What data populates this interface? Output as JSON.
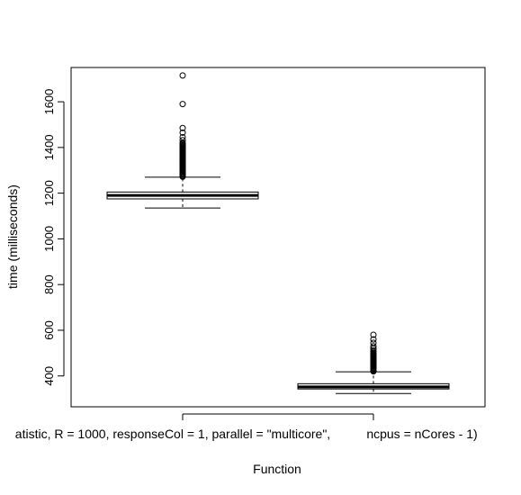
{
  "chart_data": {
    "type": "box",
    "xlabel": "Function",
    "ylabel": "time (milliseconds)",
    "categories": [
      "atistic, R = 1000, responseCol = 1, parallel = \"multicore\",",
      "ncpus = nCores - 1)"
    ],
    "yticks": [
      400,
      600,
      800,
      1000,
      1200,
      1400,
      1600
    ],
    "ylim": [
      265,
      1750
    ],
    "grid": false,
    "boxes": [
      {
        "whisker_low": 1135,
        "q1": 1175,
        "median": 1190,
        "q3": 1205,
        "whisker_high": 1270,
        "outliers": [
          1272,
          1276,
          1280,
          1284,
          1288,
          1292,
          1296,
          1300,
          1304,
          1308,
          1312,
          1316,
          1320,
          1324,
          1328,
          1332,
          1336,
          1340,
          1344,
          1348,
          1352,
          1356,
          1360,
          1364,
          1368,
          1372,
          1376,
          1380,
          1384,
          1388,
          1392,
          1396,
          1400,
          1404,
          1408,
          1412,
          1416,
          1420,
          1432,
          1445,
          1465,
          1485,
          1590,
          1715
        ]
      },
      {
        "whisker_low": 323,
        "q1": 343,
        "median": 352,
        "q3": 366,
        "whisker_high": 418,
        "outliers": [
          420,
          424,
          428,
          432,
          436,
          440,
          444,
          448,
          452,
          456,
          460,
          464,
          468,
          472,
          476,
          480,
          484,
          488,
          492,
          496,
          500,
          505,
          512,
          520,
          530,
          545,
          560,
          580
        ]
      }
    ]
  }
}
